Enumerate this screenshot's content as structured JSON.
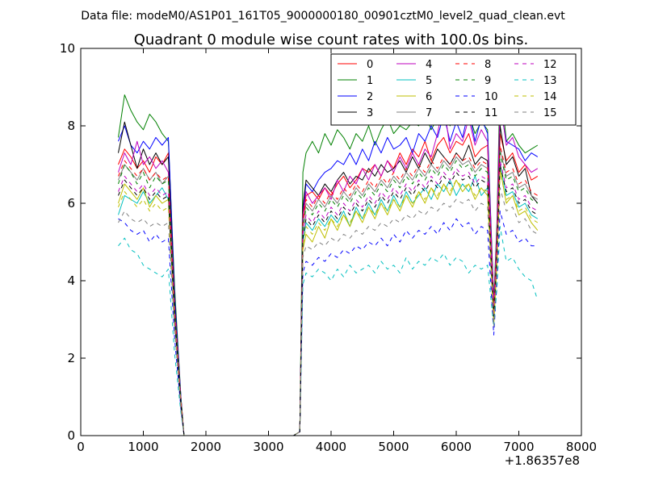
{
  "chart_data": {
    "type": "line",
    "suptitle": "Data file: modeM0/AS1P01_161T05_9000000180_00901cztM0_level2_quad_clean.evt",
    "title": "Quadrant 0 module wise count rates with 100.0s bins.",
    "xlabel": "",
    "ylabel": "",
    "x_offset_label": "+1.86357e8",
    "xlim": [
      0,
      8000
    ],
    "ylim": [
      0,
      10
    ],
    "xticks": [
      0,
      1000,
      2000,
      3000,
      4000,
      5000,
      6000,
      7000,
      8000
    ],
    "yticks": [
      0,
      2,
      4,
      6,
      8,
      10
    ],
    "grid": false,
    "legend_position": "top-right",
    "legend_columns": 4,
    "x": [
      600,
      700,
      800,
      900,
      1000,
      1100,
      1200,
      1300,
      1400,
      1500,
      1600,
      1650,
      1700,
      1800,
      1900,
      2000,
      2100,
      2200,
      2300,
      2400,
      2500,
      2600,
      2700,
      2800,
      2900,
      3000,
      3100,
      3200,
      3300,
      3400,
      3500,
      3550,
      3600,
      3700,
      3800,
      3900,
      4000,
      4100,
      4200,
      4300,
      4400,
      4500,
      4600,
      4700,
      4800,
      4900,
      5000,
      5100,
      5200,
      5300,
      5400,
      5500,
      5600,
      5700,
      5800,
      5900,
      6000,
      6100,
      6200,
      6300,
      6400,
      6500,
      6600,
      6650,
      6700,
      6800,
      6900,
      7000,
      7100,
      7200,
      7300
    ],
    "series": [
      {
        "name": "0",
        "color": "#ff0000",
        "dash": "solid",
        "values": [
          7.0,
          7.4,
          7.2,
          6.9,
          7.1,
          6.8,
          7.2,
          7.0,
          7.3,
          3.5,
          1.0,
          0,
          0,
          0,
          0,
          0,
          0,
          0,
          0,
          0,
          0,
          0,
          0,
          0,
          0,
          0,
          0,
          0,
          0,
          0,
          0.1,
          5.6,
          6.2,
          6.3,
          6.1,
          6.4,
          6.2,
          6.5,
          6.7,
          6.4,
          6.6,
          6.9,
          6.8,
          7.0,
          6.7,
          7.1,
          6.9,
          7.3,
          7.0,
          7.4,
          7.2,
          7.6,
          7.1,
          7.5,
          7.7,
          7.3,
          7.6,
          7.5,
          7.8,
          7.2,
          7.4,
          7.5,
          3.3,
          5.0,
          7.8,
          7.1,
          7.3,
          6.8,
          7.0,
          6.6,
          6.7
        ]
      },
      {
        "name": "1",
        "color": "#008000",
        "dash": "solid",
        "values": [
          7.7,
          8.8,
          8.4,
          8.1,
          7.9,
          8.3,
          8.1,
          7.8,
          7.6,
          3.8,
          1.0,
          0,
          0,
          0,
          0,
          0,
          0,
          0,
          0,
          0,
          0,
          0,
          0,
          0,
          0,
          0,
          0,
          0,
          0,
          0,
          0.1,
          6.8,
          7.3,
          7.6,
          7.3,
          7.8,
          7.5,
          7.9,
          7.7,
          7.4,
          7.8,
          7.6,
          8.0,
          7.5,
          7.9,
          8.2,
          7.8,
          8.0,
          7.9,
          8.1,
          8.0,
          8.3,
          7.9,
          8.2,
          8.5,
          8.0,
          8.4,
          8.1,
          8.3,
          7.8,
          8.1,
          7.9,
          3.5,
          5.5,
          9.3,
          7.6,
          7.8,
          7.5,
          7.3,
          7.4,
          7.5
        ]
      },
      {
        "name": "2",
        "color": "#0000ff",
        "dash": "solid",
        "values": [
          7.6,
          8.0,
          7.5,
          7.3,
          7.6,
          7.4,
          7.7,
          7.5,
          7.7,
          3.6,
          1.0,
          0,
          0,
          0,
          0,
          0,
          0,
          0,
          0,
          0,
          0,
          0,
          0,
          0,
          0,
          0,
          0,
          0,
          0,
          0,
          0.1,
          5.8,
          6.5,
          6.3,
          6.6,
          6.8,
          6.9,
          7.1,
          7.0,
          7.3,
          7.0,
          7.4,
          7.1,
          7.6,
          7.3,
          7.7,
          7.4,
          7.5,
          7.7,
          7.3,
          7.8,
          7.6,
          8.0,
          7.7,
          8.3,
          7.6,
          8.1,
          7.7,
          8.4,
          7.6,
          8.2,
          7.8,
          3.4,
          5.0,
          8.5,
          7.6,
          7.5,
          7.4,
          7.1,
          7.3,
          7.2
        ]
      },
      {
        "name": "3",
        "color": "#000000",
        "dash": "solid",
        "values": [
          7.3,
          8.1,
          7.5,
          6.9,
          7.4,
          7.0,
          7.3,
          7.0,
          7.2,
          3.4,
          0.9,
          0,
          0,
          0,
          0,
          0,
          0,
          0,
          0,
          0,
          0,
          0,
          0,
          0,
          0,
          0,
          0,
          0,
          0,
          0,
          0.1,
          5.9,
          6.6,
          6.4,
          6.2,
          6.5,
          6.3,
          6.6,
          6.8,
          6.5,
          6.7,
          6.6,
          6.9,
          6.7,
          7.0,
          6.8,
          6.9,
          7.1,
          6.8,
          7.2,
          6.9,
          7.3,
          7.0,
          7.4,
          7.2,
          7.0,
          7.3,
          7.1,
          7.5,
          7.0,
          7.2,
          7.1,
          3.2,
          5.2,
          8.0,
          7.0,
          7.2,
          6.7,
          6.9,
          6.2,
          6.0
        ]
      },
      {
        "name": "4",
        "color": "#bf00bf",
        "dash": "solid",
        "values": [
          6.8,
          7.3,
          7.0,
          7.6,
          7.0,
          7.2,
          6.9,
          7.1,
          6.8,
          3.3,
          0.9,
          0,
          0,
          0,
          0,
          0,
          0,
          0,
          0,
          0,
          0,
          0,
          0,
          0,
          0,
          0,
          0,
          0,
          0,
          0,
          0.1,
          5.7,
          6.3,
          6.0,
          6.2,
          6.4,
          6.1,
          6.6,
          6.3,
          6.7,
          6.5,
          6.9,
          6.6,
          7.0,
          6.7,
          7.1,
          6.8,
          7.2,
          6.9,
          7.3,
          7.0,
          7.4,
          7.2,
          7.8,
          8.6,
          7.4,
          7.8,
          7.6,
          8.2,
          7.5,
          7.9,
          7.6,
          3.4,
          5.3,
          8.7,
          7.5,
          7.7,
          7.2,
          7.0,
          6.8,
          6.9
        ]
      },
      {
        "name": "5",
        "color": "#00bfbf",
        "dash": "solid",
        "values": [
          5.7,
          6.2,
          6.1,
          6.0,
          6.3,
          6.0,
          6.2,
          6.4,
          6.1,
          3.0,
          0.8,
          0,
          0,
          0,
          0,
          0,
          0,
          0,
          0,
          0,
          0,
          0,
          0,
          0,
          0,
          0,
          0,
          0,
          0,
          0,
          0.1,
          5.0,
          5.5,
          5.3,
          5.6,
          5.4,
          5.7,
          5.5,
          5.8,
          5.4,
          5.9,
          5.6,
          6.0,
          5.7,
          6.1,
          5.8,
          6.2,
          5.9,
          6.3,
          6.0,
          6.2,
          6.4,
          6.1,
          6.5,
          6.3,
          6.6,
          6.2,
          6.5,
          6.3,
          6.7,
          6.2,
          6.4,
          3.0,
          4.6,
          7.0,
          6.2,
          6.3,
          5.9,
          6.0,
          5.7,
          5.6
        ]
      },
      {
        "name": "6",
        "color": "#bfbf00",
        "dash": "solid",
        "values": [
          6.0,
          6.5,
          6.3,
          6.1,
          6.4,
          5.9,
          6.2,
          6.0,
          6.1,
          3.0,
          0.8,
          0,
          0,
          0,
          0,
          0,
          0,
          0,
          0,
          0,
          0,
          0,
          0,
          0,
          0,
          0,
          0,
          0,
          0,
          0,
          0.1,
          4.8,
          5.2,
          5.0,
          5.4,
          5.1,
          5.6,
          5.3,
          5.7,
          5.4,
          5.8,
          5.5,
          5.9,
          5.6,
          6.0,
          5.7,
          6.1,
          5.8,
          6.2,
          5.9,
          6.3,
          6.0,
          6.4,
          6.1,
          6.5,
          6.2,
          6.6,
          6.3,
          6.5,
          6.1,
          6.4,
          6.2,
          2.9,
          4.4,
          6.9,
          6.0,
          6.2,
          5.7,
          5.8,
          5.5,
          5.3
        ]
      },
      {
        "name": "7",
        "color": "#7f7f7f",
        "dash": "solid",
        "values": [
          6.6,
          7.0,
          6.8,
          6.6,
          6.9,
          6.6,
          6.8,
          6.5,
          6.7,
          3.2,
          0.9,
          0,
          0,
          0,
          0,
          0,
          0,
          0,
          0,
          0,
          0,
          0,
          0,
          0,
          0,
          0,
          0,
          0,
          0,
          0,
          0.1,
          5.4,
          6.0,
          5.8,
          6.1,
          5.9,
          6.2,
          6.0,
          6.3,
          6.1,
          6.4,
          6.2,
          6.5,
          6.3,
          6.6,
          6.4,
          6.7,
          6.5,
          6.8,
          6.6,
          6.9,
          6.7,
          7.0,
          6.8,
          7.1,
          6.9,
          7.2,
          7.0,
          7.1,
          6.8,
          7.0,
          6.9,
          3.2,
          4.9,
          7.4,
          6.7,
          6.8,
          6.4,
          6.5,
          6.2,
          6.1
        ]
      },
      {
        "name": "8",
        "color": "#ff0000",
        "dash": "dashed",
        "values": [
          6.7,
          7.1,
          6.9,
          6.7,
          6.9,
          6.6,
          6.8,
          6.6,
          6.7,
          3.3,
          0.9,
          0,
          0,
          0,
          0,
          0,
          0,
          0,
          0,
          0,
          0,
          0,
          0,
          0,
          0,
          0,
          0,
          0,
          0,
          0,
          0.1,
          5.5,
          6.1,
          5.9,
          6.2,
          6.0,
          6.3,
          6.1,
          6.4,
          6.2,
          6.5,
          6.3,
          6.6,
          6.4,
          6.7,
          6.5,
          6.8,
          6.6,
          6.9,
          6.7,
          7.0,
          6.8,
          7.1,
          6.9,
          7.2,
          7.0,
          7.3,
          7.1,
          7.2,
          6.9,
          7.1,
          7.0,
          3.3,
          5.0,
          7.5,
          6.8,
          6.9,
          6.5,
          6.6,
          6.3,
          6.2
        ]
      },
      {
        "name": "9",
        "color": "#008000",
        "dash": "dashed",
        "values": [
          6.5,
          7.0,
          6.8,
          6.5,
          6.8,
          6.4,
          6.7,
          6.5,
          6.6,
          3.2,
          0.9,
          0,
          0,
          0,
          0,
          0,
          0,
          0,
          0,
          0,
          0,
          0,
          0,
          0,
          0,
          0,
          0,
          0,
          0,
          0,
          0.1,
          5.3,
          5.9,
          5.7,
          6.0,
          5.8,
          6.1,
          5.9,
          6.2,
          6.0,
          6.3,
          6.1,
          6.4,
          6.2,
          6.5,
          6.3,
          6.6,
          6.4,
          6.7,
          6.5,
          6.8,
          6.6,
          6.9,
          6.7,
          7.0,
          6.8,
          7.1,
          6.9,
          7.0,
          6.7,
          6.9,
          6.8,
          3.1,
          4.8,
          7.3,
          6.6,
          6.7,
          6.3,
          6.4,
          6.1,
          6.0
        ]
      },
      {
        "name": "10",
        "color": "#0000ff",
        "dash": "dashed",
        "values": [
          5.6,
          5.5,
          5.3,
          5.2,
          5.3,
          5.0,
          5.2,
          5.0,
          5.1,
          2.5,
          0.7,
          0,
          0,
          0,
          0,
          0,
          0,
          0,
          0,
          0,
          0,
          0,
          0,
          0,
          0,
          0,
          0,
          0,
          0,
          0,
          0.1,
          4.2,
          4.5,
          4.4,
          4.6,
          4.5,
          4.7,
          4.6,
          4.8,
          4.7,
          4.9,
          4.8,
          5.0,
          4.9,
          5.1,
          4.9,
          5.2,
          5.0,
          5.3,
          5.1,
          5.3,
          5.2,
          5.4,
          5.2,
          5.5,
          5.3,
          5.6,
          5.4,
          5.5,
          5.2,
          5.4,
          5.3,
          2.6,
          4.0,
          5.8,
          5.2,
          5.3,
          5.0,
          5.1,
          4.9,
          4.9
        ]
      },
      {
        "name": "11",
        "color": "#000000",
        "dash": "dashed",
        "values": [
          6.2,
          6.6,
          6.4,
          6.2,
          6.4,
          6.1,
          6.3,
          6.1,
          6.2,
          3.0,
          0.8,
          0,
          0,
          0,
          0,
          0,
          0,
          0,
          0,
          0,
          0,
          0,
          0,
          0,
          0,
          0,
          0,
          0,
          0,
          0,
          0.1,
          5.1,
          5.6,
          5.4,
          5.7,
          5.5,
          5.8,
          5.6,
          5.9,
          5.7,
          6.0,
          5.8,
          6.1,
          5.9,
          6.2,
          6.0,
          6.3,
          6.1,
          6.4,
          6.2,
          6.5,
          6.3,
          6.6,
          6.4,
          6.7,
          6.5,
          6.8,
          6.6,
          6.7,
          6.4,
          6.6,
          6.5,
          3.0,
          4.6,
          7.0,
          6.3,
          6.4,
          6.0,
          6.1,
          5.8,
          5.7
        ]
      },
      {
        "name": "12",
        "color": "#bf00bf",
        "dash": "dashed",
        "values": [
          6.3,
          6.7,
          6.5,
          6.3,
          6.5,
          6.2,
          6.4,
          6.2,
          6.3,
          3.1,
          0.8,
          0,
          0,
          0,
          0,
          0,
          0,
          0,
          0,
          0,
          0,
          0,
          0,
          0,
          0,
          0,
          0,
          0,
          0,
          0,
          0.1,
          5.2,
          5.7,
          5.5,
          5.8,
          5.6,
          5.9,
          5.7,
          6.0,
          5.8,
          6.1,
          5.9,
          6.2,
          6.0,
          6.3,
          6.1,
          6.4,
          6.2,
          6.5,
          6.3,
          6.6,
          6.4,
          6.7,
          6.5,
          6.8,
          6.6,
          6.9,
          6.7,
          6.8,
          6.5,
          6.7,
          6.6,
          3.1,
          4.7,
          7.1,
          6.4,
          6.5,
          6.1,
          6.2,
          5.9,
          5.8
        ]
      },
      {
        "name": "13",
        "color": "#00bfbf",
        "dash": "dashed",
        "values": [
          4.9,
          5.1,
          4.8,
          4.7,
          4.4,
          4.3,
          4.2,
          4.1,
          4.3,
          2.1,
          0.6,
          0,
          0,
          0,
          0,
          0,
          0,
          0,
          0,
          0,
          0,
          0,
          0,
          0,
          0,
          0,
          0,
          0,
          0,
          0,
          0.1,
          3.9,
          4.2,
          4.1,
          4.3,
          4.2,
          4.0,
          4.3,
          4.1,
          4.4,
          4.2,
          4.3,
          4.4,
          4.2,
          4.5,
          4.3,
          4.4,
          4.2,
          4.6,
          4.3,
          4.5,
          4.4,
          4.6,
          4.5,
          4.7,
          4.4,
          4.6,
          4.5,
          4.2,
          4.4,
          4.3,
          4.4,
          2.8,
          3.8,
          5.4,
          4.5,
          4.6,
          4.3,
          4.1,
          4.0,
          3.5
        ]
      },
      {
        "name": "14",
        "color": "#bfbf00",
        "dash": "dashed",
        "values": [
          5.9,
          6.3,
          6.1,
          5.9,
          6.1,
          5.8,
          6.0,
          5.8,
          5.9,
          2.9,
          0.8,
          0,
          0,
          0,
          0,
          0,
          0,
          0,
          0,
          0,
          0,
          0,
          0,
          0,
          0,
          0,
          0,
          0,
          0,
          0,
          0.1,
          4.9,
          5.4,
          5.2,
          5.5,
          5.3,
          5.6,
          5.4,
          5.7,
          5.5,
          5.8,
          5.6,
          5.9,
          5.7,
          6.0,
          5.8,
          6.1,
          5.9,
          6.2,
          6.0,
          6.3,
          6.1,
          6.4,
          6.2,
          6.5,
          6.3,
          6.6,
          6.4,
          6.5,
          6.2,
          6.4,
          6.3,
          2.9,
          4.5,
          6.8,
          6.1,
          6.2,
          5.8,
          5.9,
          5.6,
          5.5
        ]
      },
      {
        "name": "15",
        "color": "#7f7f7f",
        "dash": "dashed",
        "values": [
          5.5,
          5.8,
          5.6,
          5.5,
          5.6,
          5.4,
          5.5,
          5.4,
          5.5,
          2.7,
          0.7,
          0,
          0,
          0,
          0,
          0,
          0,
          0,
          0,
          0,
          0,
          0,
          0,
          0,
          0,
          0,
          0,
          0,
          0,
          0,
          0.1,
          4.6,
          4.9,
          4.8,
          5.0,
          4.9,
          5.1,
          5.0,
          5.2,
          5.1,
          5.3,
          5.2,
          5.4,
          5.3,
          5.5,
          5.4,
          5.6,
          5.5,
          5.7,
          5.6,
          5.8,
          5.7,
          5.9,
          5.8,
          6.0,
          5.9,
          6.1,
          6.0,
          6.1,
          5.8,
          6.0,
          5.9,
          2.8,
          4.3,
          6.4,
          5.8,
          5.9,
          5.5,
          5.6,
          5.3,
          5.2
        ]
      }
    ]
  }
}
